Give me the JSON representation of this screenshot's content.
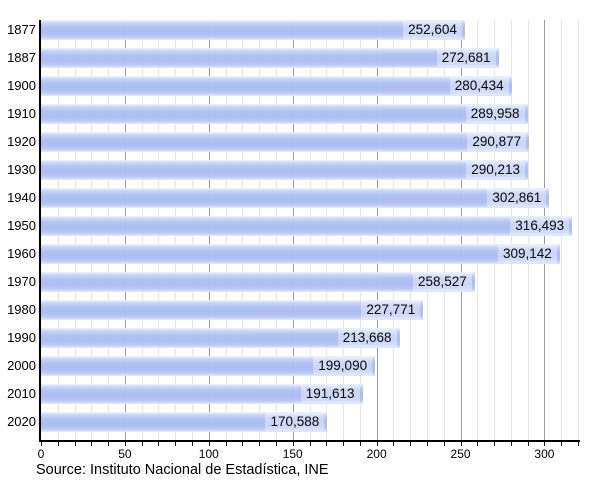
{
  "chart_data": {
    "type": "bar",
    "orientation": "horizontal",
    "title": "",
    "xlabel": "",
    "ylabel": "",
    "categories": [
      "1877",
      "1887",
      "1900",
      "1910",
      "1920",
      "1930",
      "1940",
      "1950",
      "1960",
      "1970",
      "1980",
      "1990",
      "2000",
      "2010",
      "2020"
    ],
    "values": [
      252604,
      272681,
      280434,
      289958,
      290877,
      290213,
      302861,
      316493,
      309142,
      258527,
      227771,
      213668,
      199090,
      191613,
      170588
    ],
    "value_labels": [
      "252,604",
      "272,681",
      "280,434",
      "289,958",
      "290,877",
      "290,213",
      "302,861",
      "316,493",
      "309,142",
      "258,527",
      "227,771",
      "213,668",
      "199,090",
      "191,613",
      "170,588"
    ],
    "x_axis": {
      "min": 0,
      "max": 320,
      "tick_step": 50,
      "minor_step": 10,
      "tick_labels": [
        "0",
        "50",
        "100",
        "150",
        "200",
        "250",
        "300"
      ],
      "value_scale_divisor": 1000
    },
    "grid": "on",
    "legend": "none",
    "source": "Source: Instituto Nacional de Estadística, INE",
    "colors": {
      "bar_fill": "#a9bcf2",
      "bar_edge_highlight": "#eef3fe",
      "value_label_box": "rgba(255,255,255,0.38)",
      "minor_gridline": "#e4e6ea",
      "major_gridline": "#9c9ca2",
      "axis": "#000000",
      "text": "#000000",
      "background": "#ffffff"
    }
  }
}
